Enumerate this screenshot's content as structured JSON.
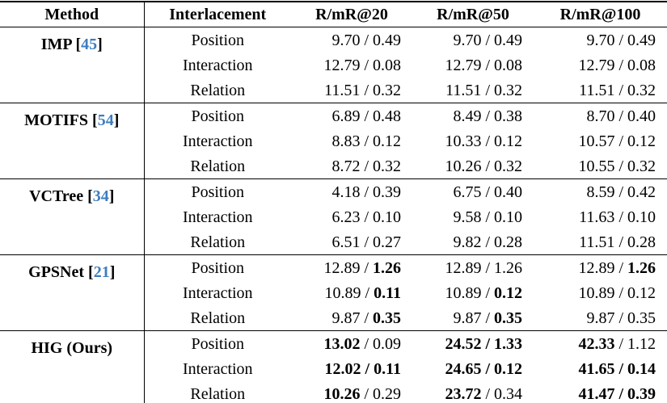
{
  "colors": {
    "citation_blue": "#3d7ebf",
    "border_black": "#000000",
    "background": "#ffffff"
  },
  "table": {
    "headers": [
      "Method",
      "Interlacement",
      "R/mR@20",
      "R/mR@50",
      "R/mR@100"
    ],
    "groups": [
      {
        "method": "IMP",
        "citation": "45",
        "rows": [
          {
            "interlacement": "Position",
            "cells": [
              {
                "r": "9.70",
                "rb": false,
                "m": "0.49",
                "mb": false
              },
              {
                "r": "9.70",
                "rb": false,
                "m": "0.49",
                "mb": false
              },
              {
                "r": "9.70",
                "rb": false,
                "m": "0.49",
                "mb": false
              }
            ]
          },
          {
            "interlacement": "Interaction",
            "cells": [
              {
                "r": "12.79",
                "rb": false,
                "m": "0.08",
                "mb": false
              },
              {
                "r": "12.79",
                "rb": false,
                "m": "0.08",
                "mb": false
              },
              {
                "r": "12.79",
                "rb": false,
                "m": "0.08",
                "mb": false
              }
            ]
          },
          {
            "interlacement": "Relation",
            "cells": [
              {
                "r": "11.51",
                "rb": false,
                "m": "0.32",
                "mb": false
              },
              {
                "r": "11.51",
                "rb": false,
                "m": "0.32",
                "mb": false
              },
              {
                "r": "11.51",
                "rb": false,
                "m": "0.32",
                "mb": false
              }
            ]
          }
        ]
      },
      {
        "method": "MOTIFS",
        "citation": "54",
        "rows": [
          {
            "interlacement": "Position",
            "cells": [
              {
                "r": "6.89",
                "rb": false,
                "m": "0.48",
                "mb": false
              },
              {
                "r": "8.49",
                "rb": false,
                "m": "0.38",
                "mb": false
              },
              {
                "r": "8.70",
                "rb": false,
                "m": "0.40",
                "mb": false
              }
            ]
          },
          {
            "interlacement": "Interaction",
            "cells": [
              {
                "r": "8.83",
                "rb": false,
                "m": "0.12",
                "mb": false
              },
              {
                "r": "10.33",
                "rb": false,
                "m": "0.12",
                "mb": false
              },
              {
                "r": "10.57",
                "rb": false,
                "m": "0.12",
                "mb": false
              }
            ]
          },
          {
            "interlacement": "Relation",
            "cells": [
              {
                "r": "8.72",
                "rb": false,
                "m": "0.32",
                "mb": false
              },
              {
                "r": "10.26",
                "rb": false,
                "m": "0.32",
                "mb": false
              },
              {
                "r": "10.55",
                "rb": false,
                "m": "0.32",
                "mb": false
              }
            ]
          }
        ]
      },
      {
        "method": "VCTree",
        "citation": "34",
        "rows": [
          {
            "interlacement": "Position",
            "cells": [
              {
                "r": "4.18",
                "rb": false,
                "m": "0.39",
                "mb": false
              },
              {
                "r": "6.75",
                "rb": false,
                "m": "0.40",
                "mb": false
              },
              {
                "r": "8.59",
                "rb": false,
                "m": "0.42",
                "mb": false
              }
            ]
          },
          {
            "interlacement": "Interaction",
            "cells": [
              {
                "r": "6.23",
                "rb": false,
                "m": "0.10",
                "mb": false
              },
              {
                "r": "9.58",
                "rb": false,
                "m": "0.10",
                "mb": false
              },
              {
                "r": "11.63",
                "rb": false,
                "m": "0.10",
                "mb": false
              }
            ]
          },
          {
            "interlacement": "Relation",
            "cells": [
              {
                "r": "6.51",
                "rb": false,
                "m": "0.27",
                "mb": false
              },
              {
                "r": "9.82",
                "rb": false,
                "m": "0.28",
                "mb": false
              },
              {
                "r": "11.51",
                "rb": false,
                "m": "0.28",
                "mb": false
              }
            ]
          }
        ]
      },
      {
        "method": "GPSNet",
        "citation": "21",
        "rows": [
          {
            "interlacement": "Position",
            "cells": [
              {
                "r": "12.89",
                "rb": false,
                "m": "1.26",
                "mb": true
              },
              {
                "r": "12.89",
                "rb": false,
                "m": "1.26",
                "mb": false
              },
              {
                "r": "12.89",
                "rb": false,
                "m": "1.26",
                "mb": true
              }
            ]
          },
          {
            "interlacement": "Interaction",
            "cells": [
              {
                "r": "10.89",
                "rb": false,
                "m": "0.11",
                "mb": true
              },
              {
                "r": "10.89",
                "rb": false,
                "m": "0.12",
                "mb": true
              },
              {
                "r": "10.89",
                "rb": false,
                "m": "0.12",
                "mb": false
              }
            ]
          },
          {
            "interlacement": "Relation",
            "cells": [
              {
                "r": "9.87",
                "rb": false,
                "m": "0.35",
                "mb": true
              },
              {
                "r": "9.87",
                "rb": false,
                "m": "0.35",
                "mb": true
              },
              {
                "r": "9.87",
                "rb": false,
                "m": "0.35",
                "mb": false
              }
            ]
          }
        ]
      },
      {
        "method": "HIG (Ours)",
        "citation": null,
        "rows": [
          {
            "interlacement": "Position",
            "cells": [
              {
                "r": "13.02",
                "rb": true,
                "m": "0.09",
                "mb": false
              },
              {
                "r": "24.52",
                "rb": true,
                "m": "1.33",
                "mb": true
              },
              {
                "r": "42.33",
                "rb": true,
                "m": "1.12",
                "mb": false
              }
            ]
          },
          {
            "interlacement": "Interaction",
            "cells": [
              {
                "r": "12.02",
                "rb": true,
                "m": "0.11",
                "mb": true
              },
              {
                "r": "24.65",
                "rb": true,
                "m": "0.12",
                "mb": true
              },
              {
                "r": "41.65",
                "rb": true,
                "m": "0.14",
                "mb": true
              }
            ]
          },
          {
            "interlacement": "Relation",
            "cells": [
              {
                "r": "10.26",
                "rb": true,
                "m": "0.29",
                "mb": false
              },
              {
                "r": "23.72",
                "rb": true,
                "m": "0.34",
                "mb": false
              },
              {
                "r": "41.47",
                "rb": true,
                "m": "0.39",
                "mb": true
              }
            ]
          }
        ]
      }
    ],
    "value_separator": " / "
  }
}
